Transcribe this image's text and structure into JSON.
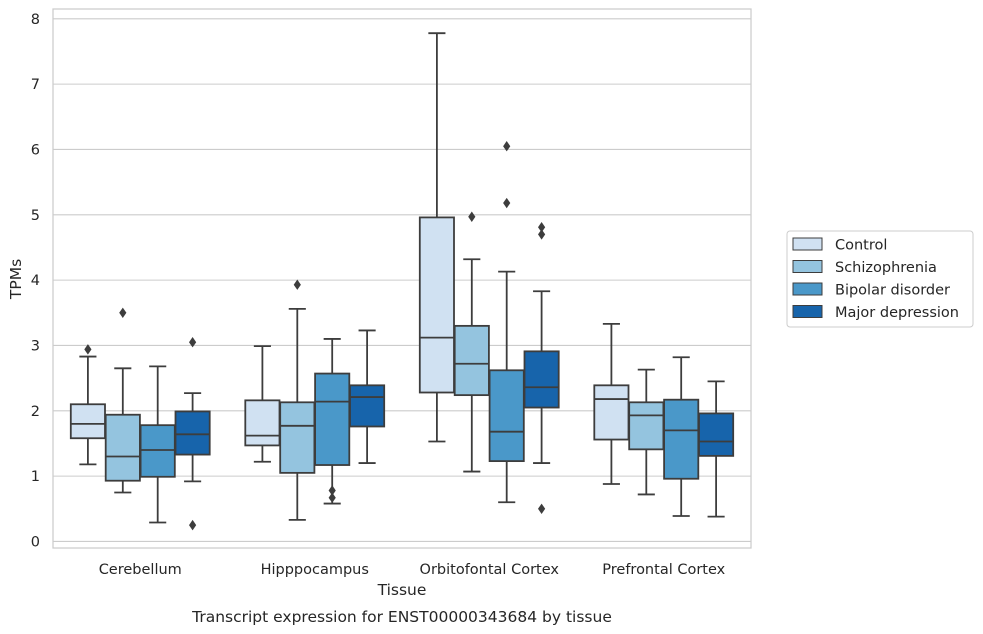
{
  "chart_data": {
    "type": "box",
    "xlabel": "Tissue",
    "ylabel": "TPMs",
    "caption": "Transcript expression for ENST00000343684 by tissue",
    "ylim": [
      -0.1,
      8.15
    ],
    "yticks": [
      0,
      1,
      2,
      3,
      4,
      5,
      6,
      7,
      8
    ],
    "grid": true,
    "legend_placement": "right",
    "categories": [
      "Cerebellum",
      "Hipppocampus",
      "Orbitofontal Cortex",
      "Prefrontal Cortex"
    ],
    "series": [
      {
        "name": "Control",
        "color": "#d0e1f2",
        "boxes": [
          {
            "whisker_low": 1.18,
            "q1": 1.58,
            "median": 1.8,
            "q3": 2.1,
            "whisker_high": 2.83,
            "outliers": [
              2.94
            ]
          },
          {
            "whisker_low": 1.22,
            "q1": 1.47,
            "median": 1.62,
            "q3": 2.16,
            "whisker_high": 2.99,
            "outliers": []
          },
          {
            "whisker_low": 1.53,
            "q1": 2.28,
            "median": 3.12,
            "q3": 4.96,
            "whisker_high": 7.78,
            "outliers": []
          },
          {
            "whisker_low": 0.88,
            "q1": 1.56,
            "median": 2.18,
            "q3": 2.39,
            "whisker_high": 3.33,
            "outliers": []
          }
        ]
      },
      {
        "name": "Schizophrenia",
        "color": "#94c4df",
        "boxes": [
          {
            "whisker_low": 0.75,
            "q1": 0.93,
            "median": 1.3,
            "q3": 1.94,
            "whisker_high": 2.65,
            "outliers": [
              3.5
            ]
          },
          {
            "whisker_low": 0.33,
            "q1": 1.05,
            "median": 1.77,
            "q3": 2.13,
            "whisker_high": 3.56,
            "outliers": [
              3.93
            ]
          },
          {
            "whisker_low": 1.07,
            "q1": 2.24,
            "median": 2.72,
            "q3": 3.3,
            "whisker_high": 4.32,
            "outliers": [
              4.97
            ]
          },
          {
            "whisker_low": 0.72,
            "q1": 1.41,
            "median": 1.93,
            "q3": 2.13,
            "whisker_high": 2.63,
            "outliers": []
          }
        ]
      },
      {
        "name": "Bipolar disorder",
        "color": "#4a98c9",
        "boxes": [
          {
            "whisker_low": 0.29,
            "q1": 0.99,
            "median": 1.4,
            "q3": 1.78,
            "whisker_high": 2.68,
            "outliers": []
          },
          {
            "whisker_low": 0.58,
            "q1": 1.17,
            "median": 2.14,
            "q3": 2.57,
            "whisker_high": 3.1,
            "outliers": [
              0.67,
              0.78
            ]
          },
          {
            "whisker_low": 0.6,
            "q1": 1.23,
            "median": 1.68,
            "q3": 2.62,
            "whisker_high": 4.13,
            "outliers": [
              5.18,
              6.05
            ]
          },
          {
            "whisker_low": 0.39,
            "q1": 0.96,
            "median": 1.7,
            "q3": 2.17,
            "whisker_high": 2.82,
            "outliers": []
          }
        ]
      },
      {
        "name": "Major depression",
        "color": "#1764ab",
        "boxes": [
          {
            "whisker_low": 0.92,
            "q1": 1.33,
            "median": 1.64,
            "q3": 1.99,
            "whisker_high": 2.27,
            "outliers": [
              0.25,
              3.05
            ]
          },
          {
            "whisker_low": 1.2,
            "q1": 1.76,
            "median": 2.21,
            "q3": 2.39,
            "whisker_high": 3.23,
            "outliers": []
          },
          {
            "whisker_low": 1.2,
            "q1": 2.05,
            "median": 2.36,
            "q3": 2.91,
            "whisker_high": 3.83,
            "outliers": [
              0.5,
              4.7,
              4.81
            ]
          },
          {
            "whisker_low": 0.38,
            "q1": 1.31,
            "median": 1.53,
            "q3": 1.96,
            "whisker_high": 2.45,
            "outliers": []
          }
        ]
      }
    ]
  }
}
